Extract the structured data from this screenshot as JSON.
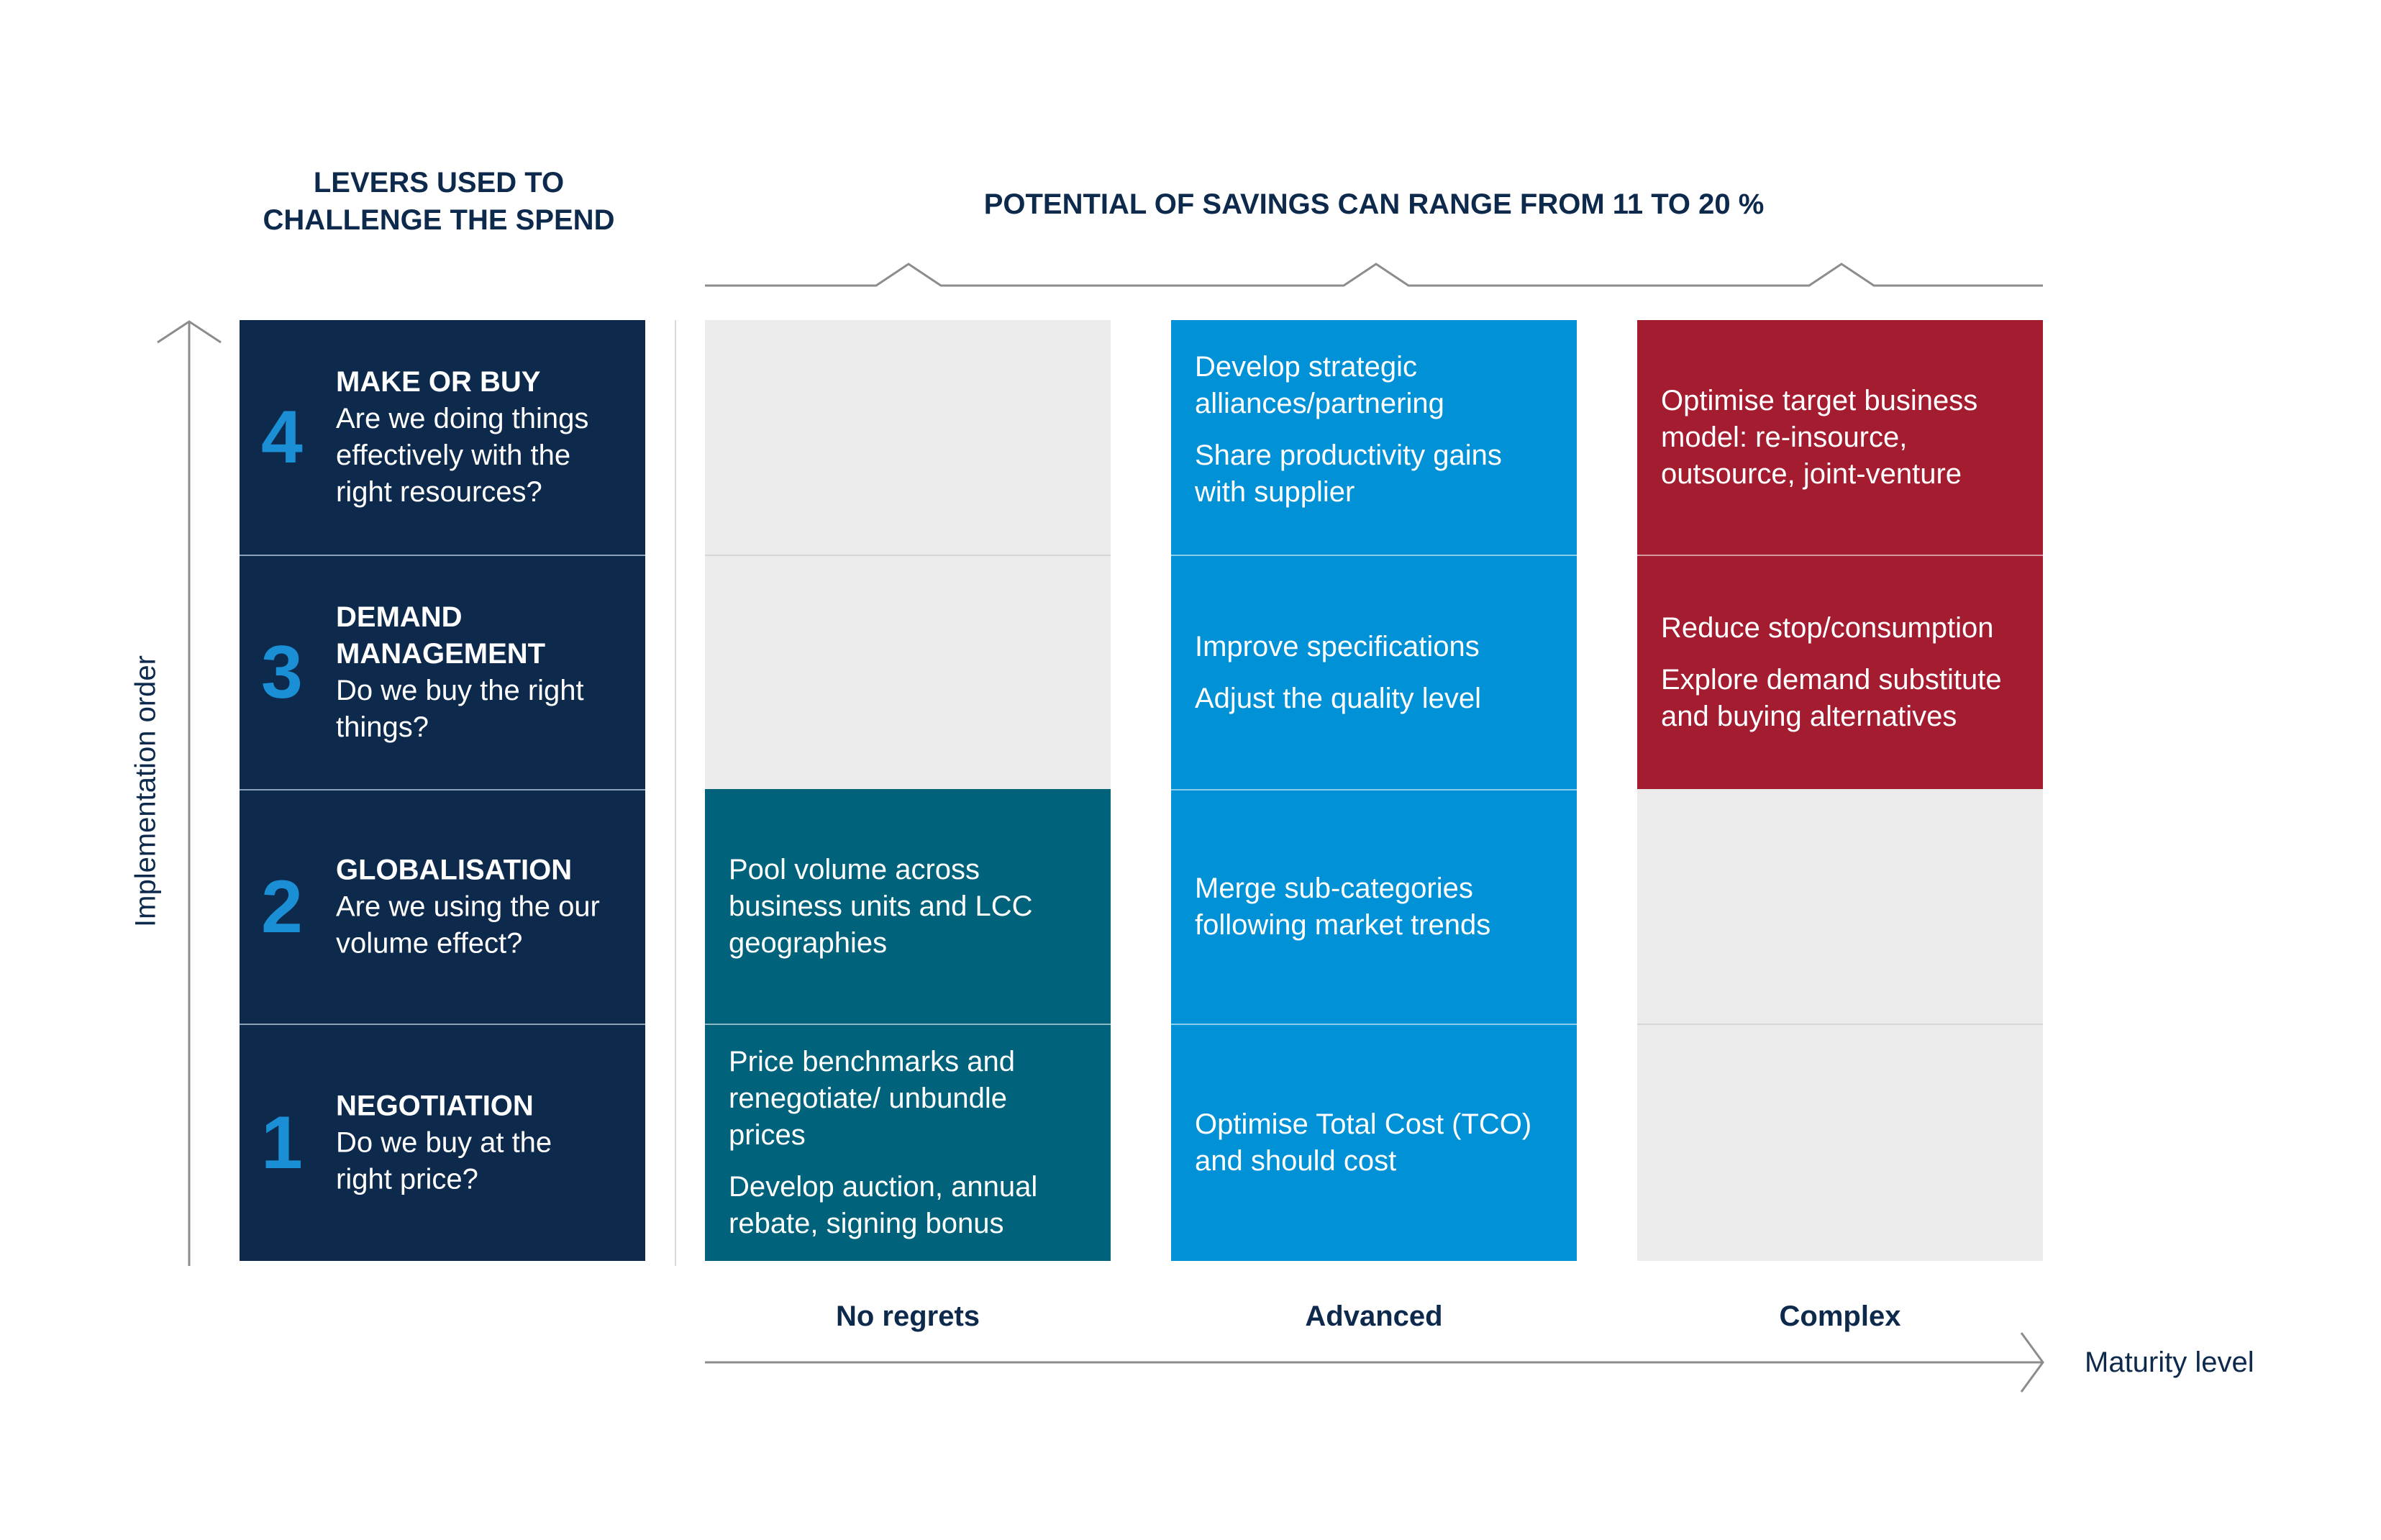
{
  "headings": {
    "levers_line1": "LEVERS USED TO",
    "levers_line2": "CHALLENGE THE SPEND",
    "savings": "POTENTIAL OF SAVINGS CAN RANGE FROM 11 TO 20 %"
  },
  "axes": {
    "vertical": "Implementation order",
    "horizontal": "Maturity level"
  },
  "levers": [
    {
      "num": "4",
      "title": "MAKE OR BUY",
      "question": "Are we doing things effectively with the right resources?"
    },
    {
      "num": "3",
      "title": "DEMAND MANAGEMENT",
      "question": "Do we buy the right things?"
    },
    {
      "num": "2",
      "title": "GLOBALISATION",
      "question": "Are we using the our volume effect?"
    },
    {
      "num": "1",
      "title": "NEGOTIATION",
      "question": "Do we buy at the right price?"
    }
  ],
  "columns": [
    {
      "label": "No regrets",
      "color": "#00637b",
      "cells": [
        [],
        [],
        [
          "Pool volume across business units and LCC geographies"
        ],
        [
          "Price benchmarks and renegotiate/ unbundle prices",
          "Develop auction, annual rebate, signing bonus"
        ]
      ]
    },
    {
      "label": "Advanced",
      "color": "#0091d7",
      "cells": [
        [
          "Develop strategic alliances/partnering",
          "Share productivity gains with supplier"
        ],
        [
          "Improve specifications",
          "Adjust the quality level"
        ],
        [
          "Merge sub-categories following market trends"
        ],
        [
          "Optimise Total Cost (TCO) and should cost"
        ]
      ]
    },
    {
      "label": "Complex",
      "color": "#a41c30",
      "cells": [
        [
          "Optimise target business model: re-insource, outsource, joint-venture"
        ],
        [
          "Reduce stop/consumption",
          "Explore demand substitute and buying alternatives"
        ],
        [],
        []
      ]
    }
  ],
  "colors": {
    "navy": "#0d2a4d",
    "lever_number": "#1a8fd6",
    "empty_cell": "#ebebeb"
  }
}
